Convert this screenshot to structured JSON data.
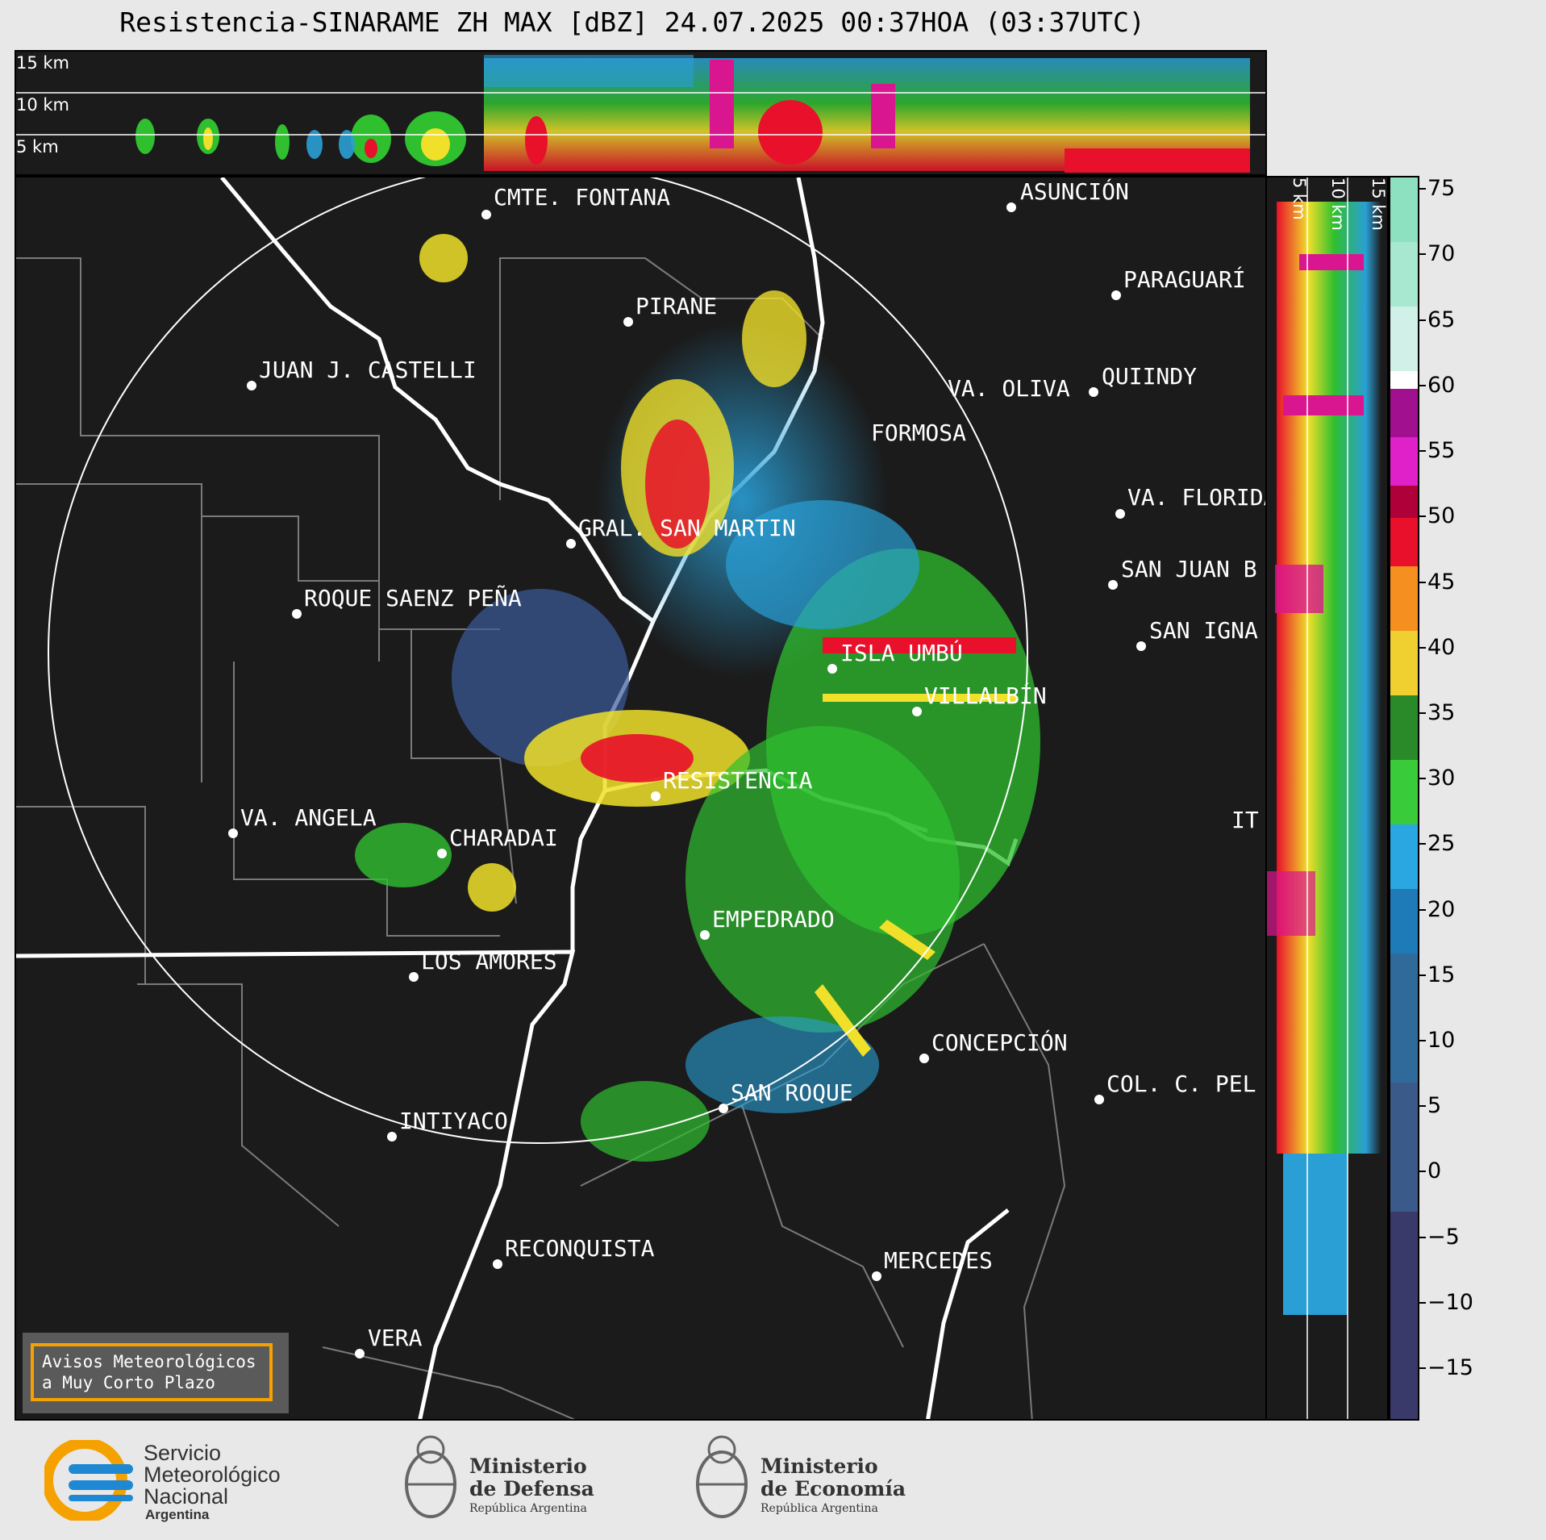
{
  "title": "Resistencia-SINARAME ZH MAX [dBZ] 24.07.2025 00:37HOA (03:37UTC)",
  "top_panel": {
    "height_labels": [
      "15 km",
      "10 km",
      "5 km"
    ]
  },
  "side_panel": {
    "height_labels": [
      "5 km",
      "10 km",
      "15 km"
    ]
  },
  "colorbar": {
    "ticks": [
      "75",
      "70",
      "65",
      "60",
      "55",
      "50",
      "45",
      "40",
      "35",
      "30",
      "25",
      "20",
      "15",
      "10",
      "5",
      "0",
      "−5",
      "−10",
      "−15"
    ],
    "min": -19,
    "max": 76
  },
  "radar": "RESISTENCIA",
  "cities": [
    {
      "name": "CMTE. FONTANA"
    },
    {
      "name": "ASUNCIÓN"
    },
    {
      "name": "PARAGUARÍ"
    },
    {
      "name": "PIRANE"
    },
    {
      "name": "JUAN J. CASTELLI"
    },
    {
      "name": "QUIINDY"
    },
    {
      "name": "VA. OLIVA"
    },
    {
      "name": "FORMOSA"
    },
    {
      "name": "VA. FLORIDA"
    },
    {
      "name": "GRAL. SAN MARTIN"
    },
    {
      "name": "SAN JUAN B"
    },
    {
      "name": "ROQUE SAENZ PEÑA"
    },
    {
      "name": "SAN IGNA"
    },
    {
      "name": "ISLA UMBÚ"
    },
    {
      "name": "VILLALBÍN"
    },
    {
      "name": "RESISTENCIA"
    },
    {
      "name": "VA. ANGELA"
    },
    {
      "name": "CHARADAI"
    },
    {
      "name": "IT"
    },
    {
      "name": "EMPEDRADO"
    },
    {
      "name": "LOS AMORES"
    },
    {
      "name": "CONCEPCIÓN"
    },
    {
      "name": "COL. C. PEL"
    },
    {
      "name": "SAN ROQUE"
    },
    {
      "name": "INTIYACO"
    },
    {
      "name": "RECONQUISTA"
    },
    {
      "name": "MERCEDES"
    },
    {
      "name": "VERA"
    }
  ],
  "warning_box": {
    "line1": "Avisos Meteorológicos",
    "line2": "a Muy Corto Plazo"
  },
  "logos": {
    "smn": {
      "line1": "Servicio",
      "line2": "Meteorológico",
      "line3": "Nacional",
      "line4": "Argentina"
    },
    "defensa": {
      "line1": "Ministerio",
      "line2": "de Defensa",
      "line3": "República Argentina"
    },
    "economia": {
      "line1": "Ministerio",
      "line2": "de Economía",
      "line3": "República Argentina"
    }
  },
  "colors": {
    "panel_bg": "#1b1b1b",
    "accent_orange": "#f5a200",
    "smn_blue": "#1e88d2",
    "smn_orange": "#f5a200"
  }
}
